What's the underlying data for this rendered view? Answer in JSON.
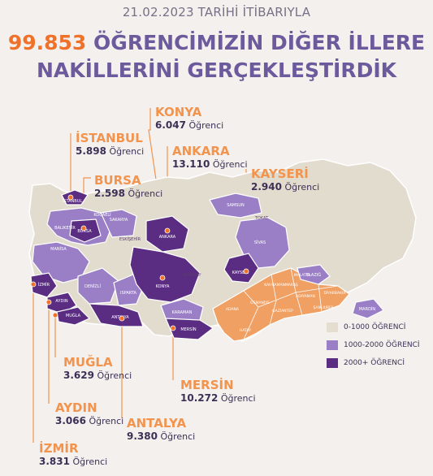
{
  "header": {
    "date": "21.02.2023 TARİHİ İTİBARIYLA",
    "number": "99.853",
    "headline_rest": "ÖĞRENCİMİZİN DİĞER İLLERE",
    "headline_line2": "NAKİLLERİNİ GERÇEKLEŞTİRDİK"
  },
  "unit": "Öğrenci",
  "callouts": [
    {
      "city": "KONYA",
      "count": "6.047"
    },
    {
      "city": "İSTANBUL",
      "count": "5.898"
    },
    {
      "city": "ANKARA",
      "count": "13.110"
    },
    {
      "city": "BURSA",
      "count": "2.598"
    },
    {
      "city": "KAYSERİ",
      "count": "2.940"
    },
    {
      "city": "MUĞLA",
      "count": "3.629"
    },
    {
      "city": "MERSİN",
      "count": "10.272"
    },
    {
      "city": "AYDIN",
      "count": "3.066"
    },
    {
      "city": "ANTALYA",
      "count": "9.380"
    },
    {
      "city": "İZMİR",
      "count": "3.831"
    }
  ],
  "map_labels": {
    "istanbul": "İSTANBUL",
    "bursa": "BURSA",
    "ankara": "ANKARA",
    "konya": "KONYA",
    "kayseri": "KAYSERİ",
    "izmir": "İZMİR",
    "aydin": "AYDIN",
    "mugla": "MUĞLA",
    "antalya": "ANTALYA",
    "mersin": "MERSİN",
    "samsun": "SAMSUN",
    "sakarya": "SAKARYA",
    "kocaeli": "KOCAELİ",
    "eskisehir": "ESKİŞEHİR",
    "balikesir": "BALIKESİR",
    "manisa": "MANİSA",
    "denizli": "DENİZLİ",
    "isparta": "ISPARTA",
    "karaman": "KARAMAN",
    "aksaray": "AKSARAY",
    "sivas": "SİVAS",
    "tokat": "TOKAT",
    "malatya": "MALATYA",
    "elazig": "ELAZIĞ",
    "diyarbakir": "DİYARBAKIR",
    "mardin": "MARDİN",
    "adana": "ADANA",
    "osmaniye": "OSMANİYE",
    "gaziantep": "GAZİANTEP",
    "sanliurfa": "ŞANLIURFA",
    "adiyaman": "ADIYAMAN",
    "hatay": "HATAY",
    "kahramanmaras": "KAHRAMANMARAŞ"
  },
  "legend": [
    {
      "label": "0-1000 ÖĞRENCİ",
      "color": "#e5ddd0"
    },
    {
      "label": "1000-2000 ÖĞRENCİ",
      "color": "#9a7fc6"
    },
    {
      "label": "2000+ ÖĞRENCİ",
      "color": "#5a2d82"
    }
  ],
  "colors": {
    "base": "#e2dccf",
    "mid": "#9a7fc6",
    "high": "#5a2d82",
    "quake": "#f0a063",
    "accent": "#f0722a"
  }
}
